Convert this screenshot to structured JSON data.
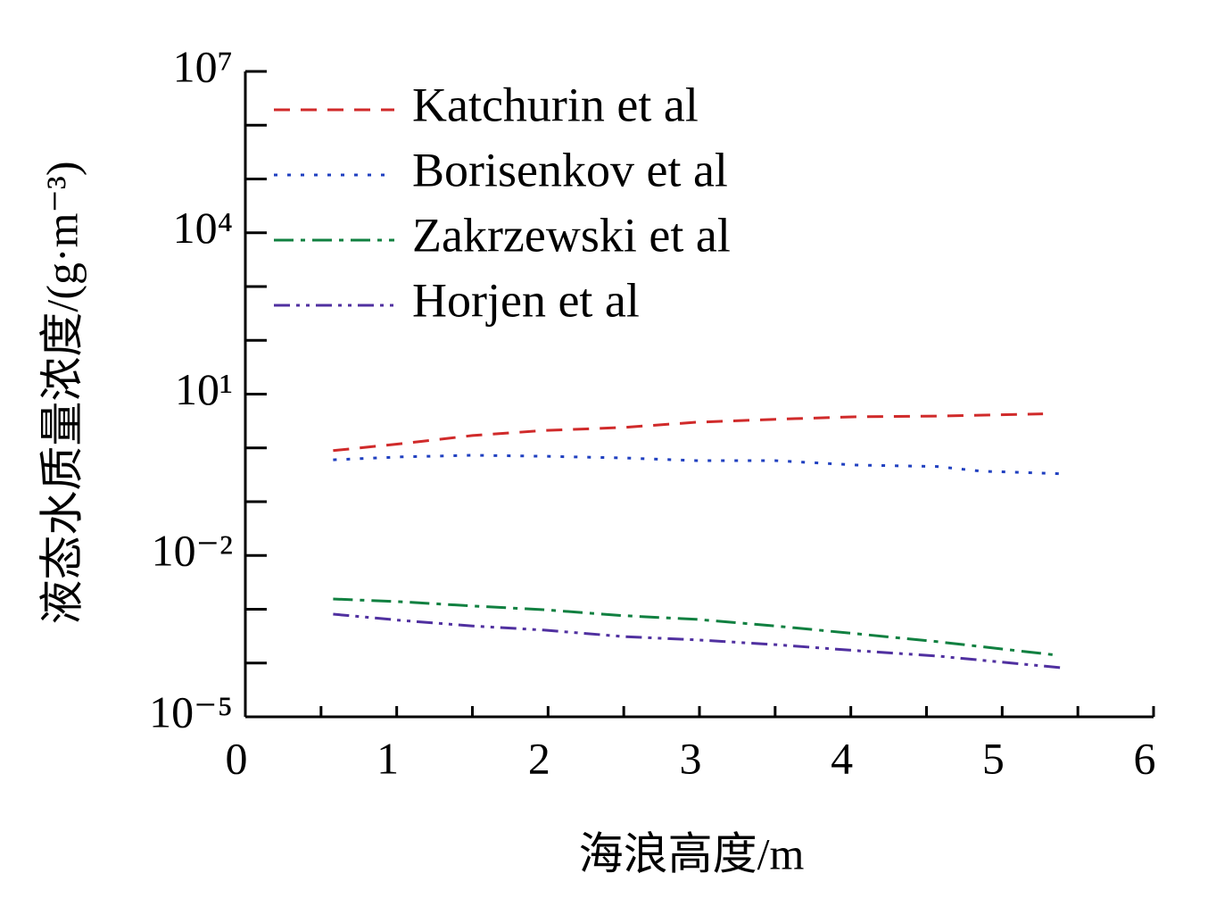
{
  "chart_data": {
    "type": "line",
    "xlabel": "海浪高度/m",
    "ylabel": "液态水质量浓度/(g·m⁻³)",
    "log_y": true,
    "legend": "upper left",
    "xlim": [
      0,
      6
    ],
    "ylim": [
      1e-05,
      10000000
    ],
    "xticks": [
      0,
      {
        "value": 0.5,
        "label": null
      },
      1,
      {
        "value": 1.5,
        "label": null
      },
      2,
      {
        "value": 2.5,
        "label": null
      },
      3,
      {
        "value": 3.5,
        "label": null
      },
      4,
      {
        "value": 4.5,
        "label": null
      },
      5,
      {
        "value": 5.5,
        "label": null
      },
      6
    ],
    "yticks": [
      {
        "value": 1e-05,
        "label": "10⁻⁵"
      },
      {
        "value": 0.0001,
        "label": null
      },
      {
        "value": 0.001,
        "label": null
      },
      {
        "value": 0.01,
        "label": "10⁻²"
      },
      {
        "value": 0.1,
        "label": null
      },
      {
        "value": 1,
        "label": null
      },
      {
        "value": 10,
        "label": "10¹"
      },
      {
        "value": 100,
        "label": null
      },
      {
        "value": 1000,
        "label": null
      },
      {
        "value": 10000,
        "label": "10⁴"
      },
      {
        "value": 100000,
        "label": null
      },
      {
        "value": 1000000,
        "label": null
      },
      {
        "value": 10000000,
        "label": "10⁷"
      }
    ],
    "series": [
      {
        "name": "Katchurin et al",
        "color": "#d02a2a",
        "dash": "dashed",
        "x": [
          0.58,
          1.03,
          1.5,
          1.97,
          2.5,
          2.98,
          3.5,
          4.04,
          4.57,
          5.27
        ],
        "values": [
          0.89,
          1.2,
          1.7,
          2.1,
          2.4,
          3.0,
          3.4,
          3.8,
          3.9,
          4.3
        ]
      },
      {
        "name": "Borisenkov et al",
        "color": "#2040c0",
        "dash": "dotted",
        "x": [
          0.58,
          1.03,
          1.5,
          1.97,
          2.5,
          2.98,
          3.5,
          4.04,
          4.57,
          4.86,
          5.41
        ],
        "values": [
          0.6,
          0.68,
          0.73,
          0.7,
          0.65,
          0.58,
          0.58,
          0.48,
          0.45,
          0.37,
          0.33
        ]
      },
      {
        "name": "Zakrzewski et al",
        "color": "#108040",
        "dash": "dashdot",
        "x": [
          0.58,
          1.03,
          1.5,
          1.97,
          2.5,
          2.98,
          3.5,
          4.04,
          4.57,
          5.36
        ],
        "values": [
          0.00155,
          0.00138,
          0.00115,
          0.00098,
          0.00076,
          0.00065,
          0.00049,
          0.00035,
          0.00025,
          0.00014
        ]
      },
      {
        "name": "Horjen et al",
        "color": "#5030a0",
        "dash": "dashdotdot",
        "x": [
          0.58,
          1.03,
          1.5,
          1.97,
          2.5,
          2.98,
          3.5,
          4.04,
          4.57,
          5.41
        ],
        "values": [
          0.00081,
          0.00062,
          0.00049,
          0.00041,
          0.00031,
          0.00027,
          0.00022,
          0.00017,
          0.000135,
          8.1e-05
        ]
      }
    ]
  }
}
